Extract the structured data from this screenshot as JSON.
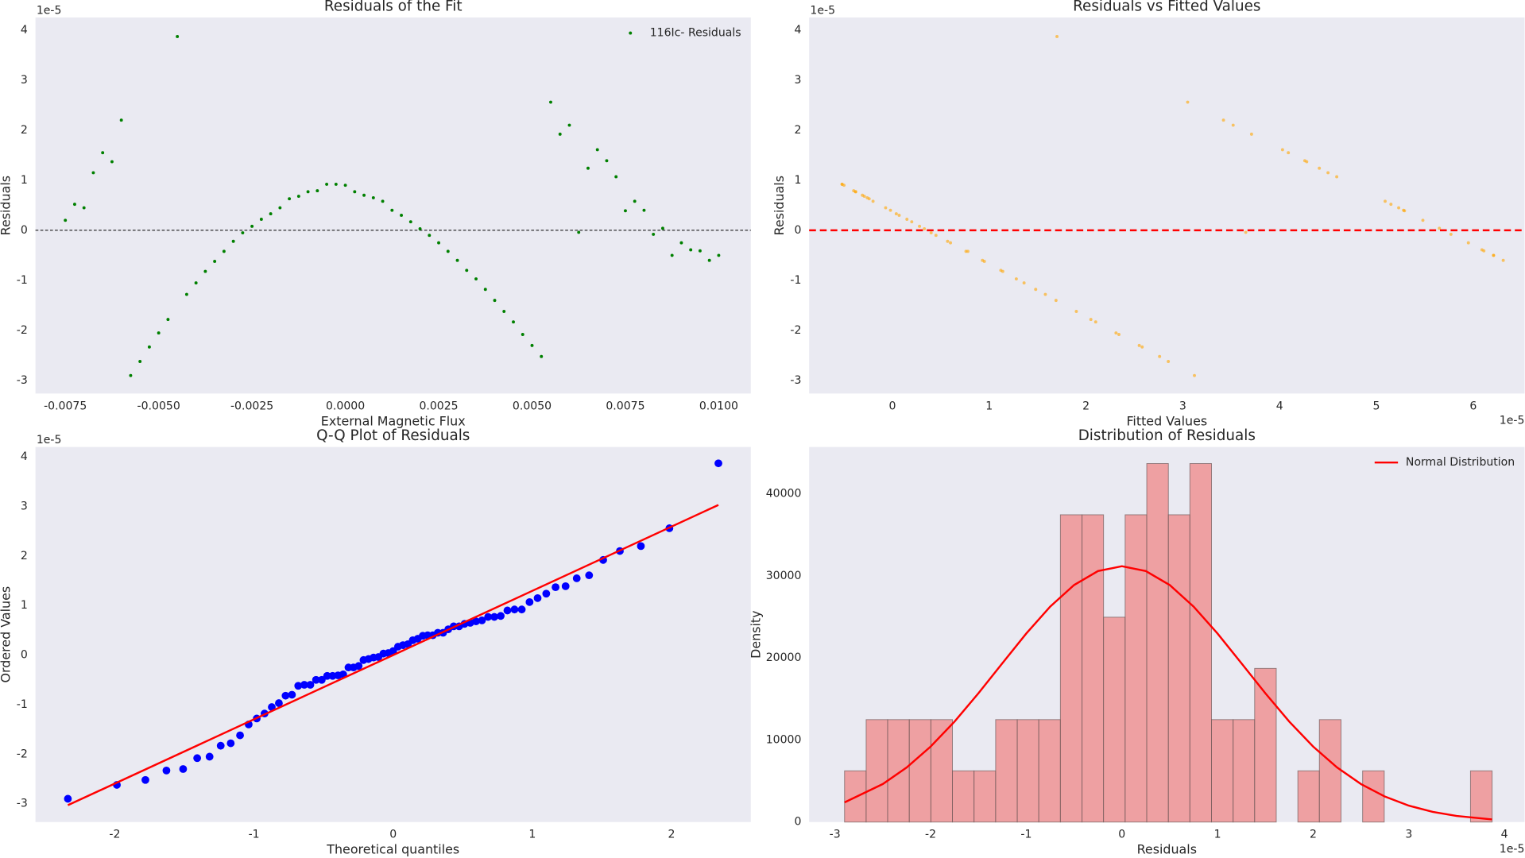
{
  "chart_data": [
    {
      "type": "scatter",
      "title": "Residuals of the Fit",
      "x_label": "External Magnetic Flux",
      "y_label": "Residuals",
      "y_offset": "1e-5",
      "x": [
        -0.0075,
        -0.00725,
        -0.007,
        -0.00675,
        -0.0065,
        -0.00625,
        -0.006,
        -0.00575,
        -0.0055,
        -0.00525,
        -0.005,
        -0.00475,
        -0.0045,
        -0.00425,
        -0.004,
        -0.00375,
        -0.0035,
        -0.00325,
        -0.003,
        -0.00275,
        -0.0025,
        -0.00225,
        -0.002,
        -0.00175,
        -0.0015,
        -0.00125,
        -0.001,
        -0.00075,
        -0.0005,
        -0.00025,
        0,
        0.00025,
        0.0005,
        0.00075,
        0.001,
        0.00125,
        0.0015,
        0.00175,
        0.002,
        0.00225,
        0.0025,
        0.00275,
        0.003,
        0.00325,
        0.0035,
        0.00375,
        0.004,
        0.00425,
        0.0045,
        0.00475,
        0.005,
        0.00525,
        0.0055,
        0.00575,
        0.006,
        0.00625,
        0.0065,
        0.00675,
        0.007,
        0.00725,
        0.0075,
        0.00775,
        0.008,
        0.00825,
        0.0085,
        0.00875,
        0.009,
        0.00925,
        0.0095,
        0.00975,
        0.01
      ],
      "series": [
        {
          "name": "116Ic- Residuals",
          "color": "green",
          "values": [
            0.2,
            0.52,
            0.45,
            1.15,
            1.55,
            1.37,
            2.2,
            -2.9,
            -2.62,
            -2.33,
            -2.05,
            -1.78,
            3.87,
            -1.28,
            -1.05,
            -0.82,
            -0.62,
            -0.42,
            -0.22,
            -0.05,
            0.08,
            0.22,
            0.33,
            0.45,
            0.63,
            0.68,
            0.77,
            0.79,
            0.92,
            0.92,
            0.9,
            0.77,
            0.7,
            0.65,
            0.58,
            0.4,
            0.3,
            0.17,
            0.03,
            -0.1,
            -0.25,
            -0.42,
            -0.6,
            -0.8,
            -0.97,
            -1.18,
            -1.4,
            -1.62,
            -1.83,
            -2.08,
            -2.3,
            -2.52,
            2.56,
            1.92,
            2.1,
            -0.04,
            1.24,
            1.61,
            1.39,
            1.07,
            0.39,
            0.58,
            0.4,
            -0.08,
            0.04,
            -0.5,
            -0.25,
            -0.39,
            -0.41,
            -0.6,
            -0.5
          ]
        }
      ],
      "reference_line": {
        "value": 0,
        "color": "black",
        "linestyle": "dashed"
      },
      "xlim": [
        -0.0083,
        0.01086
      ],
      "ylim": [
        -3.26,
        4.25
      ],
      "xticks": [
        {
          "value": -0.0075,
          "label": "-0.0075"
        },
        {
          "value": -0.005,
          "label": "-0.0050"
        },
        {
          "value": -0.0025,
          "label": "-0.0025"
        },
        {
          "value": 0,
          "label": "0.0000"
        },
        {
          "value": 0.0025,
          "label": "0.0025"
        },
        {
          "value": 0.005,
          "label": "0.0050"
        },
        {
          "value": 0.0075,
          "label": "0.0075"
        },
        {
          "value": 0.01,
          "label": "0.0100"
        }
      ],
      "yticks": [
        -3,
        -2,
        -1,
        0,
        1,
        2,
        3,
        4
      ],
      "grid": false,
      "legend": "upper right"
    },
    {
      "type": "scatter",
      "title": "Residuals vs Fitted Values",
      "x_label": "Fitted Values",
      "y_label": "Residuals",
      "x_offset": "1e-5",
      "y_offset": "1e-5",
      "x": [
        5.48,
        5.15,
        5.23,
        4.5,
        4.09,
        4.28,
        3.42,
        3.12,
        2.85,
        2.58,
        2.31,
        2.05,
        1.7,
        1.58,
        1.36,
        1.14,
        0.95,
        0.76,
        0.57,
        0.4,
        0.28,
        0.15,
        0.04,
        -0.07,
        -0.24,
        -0.29,
        -0.38,
        -0.4,
        -0.52,
        -0.52,
        -0.5,
        -0.38,
        -0.31,
        -0.26,
        -0.2,
        -0.02,
        0.07,
        0.2,
        0.33,
        0.45,
        0.6,
        0.78,
        0.93,
        1.12,
        1.28,
        1.48,
        1.69,
        1.9,
        2.1,
        2.34,
        2.55,
        2.76,
        3.05,
        3.71,
        3.52,
        3.65,
        4.41,
        4.03,
        4.26,
        4.59,
        5.29,
        5.09,
        5.28,
        5.77,
        5.65,
        6.21,
        5.95,
        6.09,
        6.11,
        6.31,
        6.21
      ],
      "values": [
        0.2,
        0.52,
        0.45,
        1.15,
        1.55,
        1.37,
        2.2,
        -2.9,
        -2.62,
        -2.33,
        -2.05,
        -1.78,
        3.87,
        -1.28,
        -1.05,
        -0.82,
        -0.62,
        -0.42,
        -0.22,
        -0.05,
        0.08,
        0.22,
        0.33,
        0.45,
        0.63,
        0.68,
        0.77,
        0.79,
        0.92,
        0.92,
        0.9,
        0.77,
        0.7,
        0.65,
        0.58,
        0.4,
        0.3,
        0.17,
        0.03,
        -0.1,
        -0.25,
        -0.42,
        -0.6,
        -0.8,
        -0.97,
        -1.18,
        -1.4,
        -1.62,
        -1.83,
        -2.08,
        -2.3,
        -2.52,
        2.56,
        1.92,
        2.1,
        -0.04,
        1.24,
        1.61,
        1.39,
        1.07,
        0.39,
        0.58,
        0.4,
        -0.08,
        0.04,
        -0.5,
        -0.25,
        -0.39,
        -0.41,
        -0.6,
        -0.5
      ],
      "color": "orange",
      "alpha": 0.6,
      "reference_line": {
        "value": 0,
        "color": "red",
        "linestyle": "dashed"
      },
      "xlim": [
        -0.86,
        6.53
      ],
      "ylim": [
        -3.26,
        4.25
      ],
      "xticks": [
        0,
        1,
        2,
        3,
        4,
        5,
        6
      ],
      "yticks": [
        -3,
        -2,
        -1,
        0,
        1,
        2,
        3,
        4
      ],
      "grid": false
    },
    {
      "type": "scatter",
      "title": "Q-Q Plot of Residuals",
      "x_label": "Theoretical quantiles",
      "y_label": "Ordered Values",
      "y_offset": "1e-5",
      "x": [
        -2.337,
        -1.985,
        -1.78,
        -1.629,
        -1.509,
        -1.408,
        -1.319,
        -1.239,
        -1.167,
        -1.1,
        -1.038,
        -0.98,
        -0.924,
        -0.872,
        -0.821,
        -0.773,
        -0.727,
        -0.682,
        -0.638,
        -0.595,
        -0.554,
        -0.513,
        -0.474,
        -0.435,
        -0.396,
        -0.359,
        -0.321,
        -0.285,
        -0.248,
        -0.213,
        -0.177,
        -0.141,
        -0.106,
        -0.07,
        -0.035,
        0,
        0.035,
        0.07,
        0.106,
        0.141,
        0.177,
        0.213,
        0.248,
        0.285,
        0.321,
        0.359,
        0.396,
        0.435,
        0.474,
        0.513,
        0.554,
        0.595,
        0.638,
        0.682,
        0.727,
        0.773,
        0.821,
        0.872,
        0.924,
        0.98,
        1.038,
        1.1,
        1.167,
        1.239,
        1.319,
        1.408,
        1.509,
        1.629,
        1.78,
        1.985,
        2.337
      ],
      "values": [
        -2.9,
        -2.62,
        -2.52,
        -2.33,
        -2.3,
        -2.08,
        -2.05,
        -1.83,
        -1.78,
        -1.62,
        -1.4,
        -1.28,
        -1.18,
        -1.05,
        -0.97,
        -0.82,
        -0.8,
        -0.62,
        -0.6,
        -0.6,
        -0.5,
        -0.5,
        -0.42,
        -0.42,
        -0.41,
        -0.39,
        -0.25,
        -0.25,
        -0.22,
        -0.1,
        -0.08,
        -0.05,
        -0.04,
        0.03,
        0.04,
        0.08,
        0.17,
        0.2,
        0.22,
        0.3,
        0.33,
        0.39,
        0.4,
        0.4,
        0.45,
        0.45,
        0.52,
        0.58,
        0.58,
        0.63,
        0.65,
        0.68,
        0.7,
        0.77,
        0.77,
        0.79,
        0.9,
        0.92,
        0.92,
        1.07,
        1.15,
        1.24,
        1.37,
        1.39,
        1.55,
        1.61,
        1.92,
        2.1,
        2.2,
        2.56,
        3.87
      ],
      "color": "blue",
      "fit_line": {
        "x": [
          -2.337,
          2.337
        ],
        "values": [
          -3.03,
          3.03
        ],
        "color": "red"
      },
      "xlim": [
        -2.57,
        2.57
      ],
      "ylim": [
        -3.37,
        4.2
      ],
      "xticks": [
        -2,
        -1,
        0,
        1,
        2
      ],
      "yticks": [
        -3,
        -2,
        -1,
        0,
        1,
        2,
        3,
        4
      ],
      "grid": false
    },
    {
      "type": "histogram",
      "title": "Distribution of Residuals",
      "x_label": "Residuals",
      "y_label": "Density",
      "x_offset": "1e-5",
      "bins": [
        -2.9,
        -2.674,
        -2.449,
        -2.223,
        -1.997,
        -1.772,
        -1.546,
        -1.32,
        -1.094,
        -0.869,
        -0.643,
        -0.417,
        -0.192,
        0.034,
        0.26,
        0.486,
        0.711,
        0.937,
        1.163,
        1.388,
        1.614,
        1.84,
        2.065,
        2.291,
        2.517,
        2.743,
        2.968,
        3.194,
        3.42,
        3.645,
        3.871
      ],
      "values": [
        6240,
        12480,
        12480,
        12480,
        12480,
        6240,
        6240,
        12480,
        12480,
        12480,
        37440,
        37440,
        24960,
        37440,
        43680,
        37440,
        43680,
        12480,
        12480,
        18720,
        0,
        6240,
        12480,
        0,
        6240,
        0,
        0,
        0,
        0,
        6240
      ],
      "color": "lightcoral",
      "alpha": 0.7,
      "edgecolor": "#6e5a5a",
      "curve": {
        "name": "Normal Distribution",
        "color": "red",
        "x": [
          -2.9,
          -2.5,
          -2.25,
          -2,
          -1.75,
          -1.5,
          -1.25,
          -1,
          -0.75,
          -0.5,
          -0.25,
          0,
          0.25,
          0.5,
          0.75,
          1,
          1.25,
          1.5,
          1.75,
          2,
          2.25,
          2.5,
          2.75,
          3,
          3.25,
          3.5,
          3.87
        ],
        "values": [
          2394,
          4630,
          6650,
          9195,
          12240,
          15690,
          19350,
          22970,
          26250,
          28880,
          30580,
          31170,
          30580,
          28880,
          26250,
          22970,
          19350,
          15690,
          12240,
          9195,
          6650,
          4630,
          3103,
          1999,
          1241,
          742,
          323
        ]
      },
      "xlim": [
        -3.27,
        4.21
      ],
      "ylim": [
        0,
        45700
      ],
      "xticks": [
        -3,
        -2,
        -1,
        0,
        1,
        2,
        3,
        4
      ],
      "yticks": [
        0,
        10000,
        20000,
        30000,
        40000
      ],
      "grid": false,
      "legend": "upper right"
    }
  ]
}
